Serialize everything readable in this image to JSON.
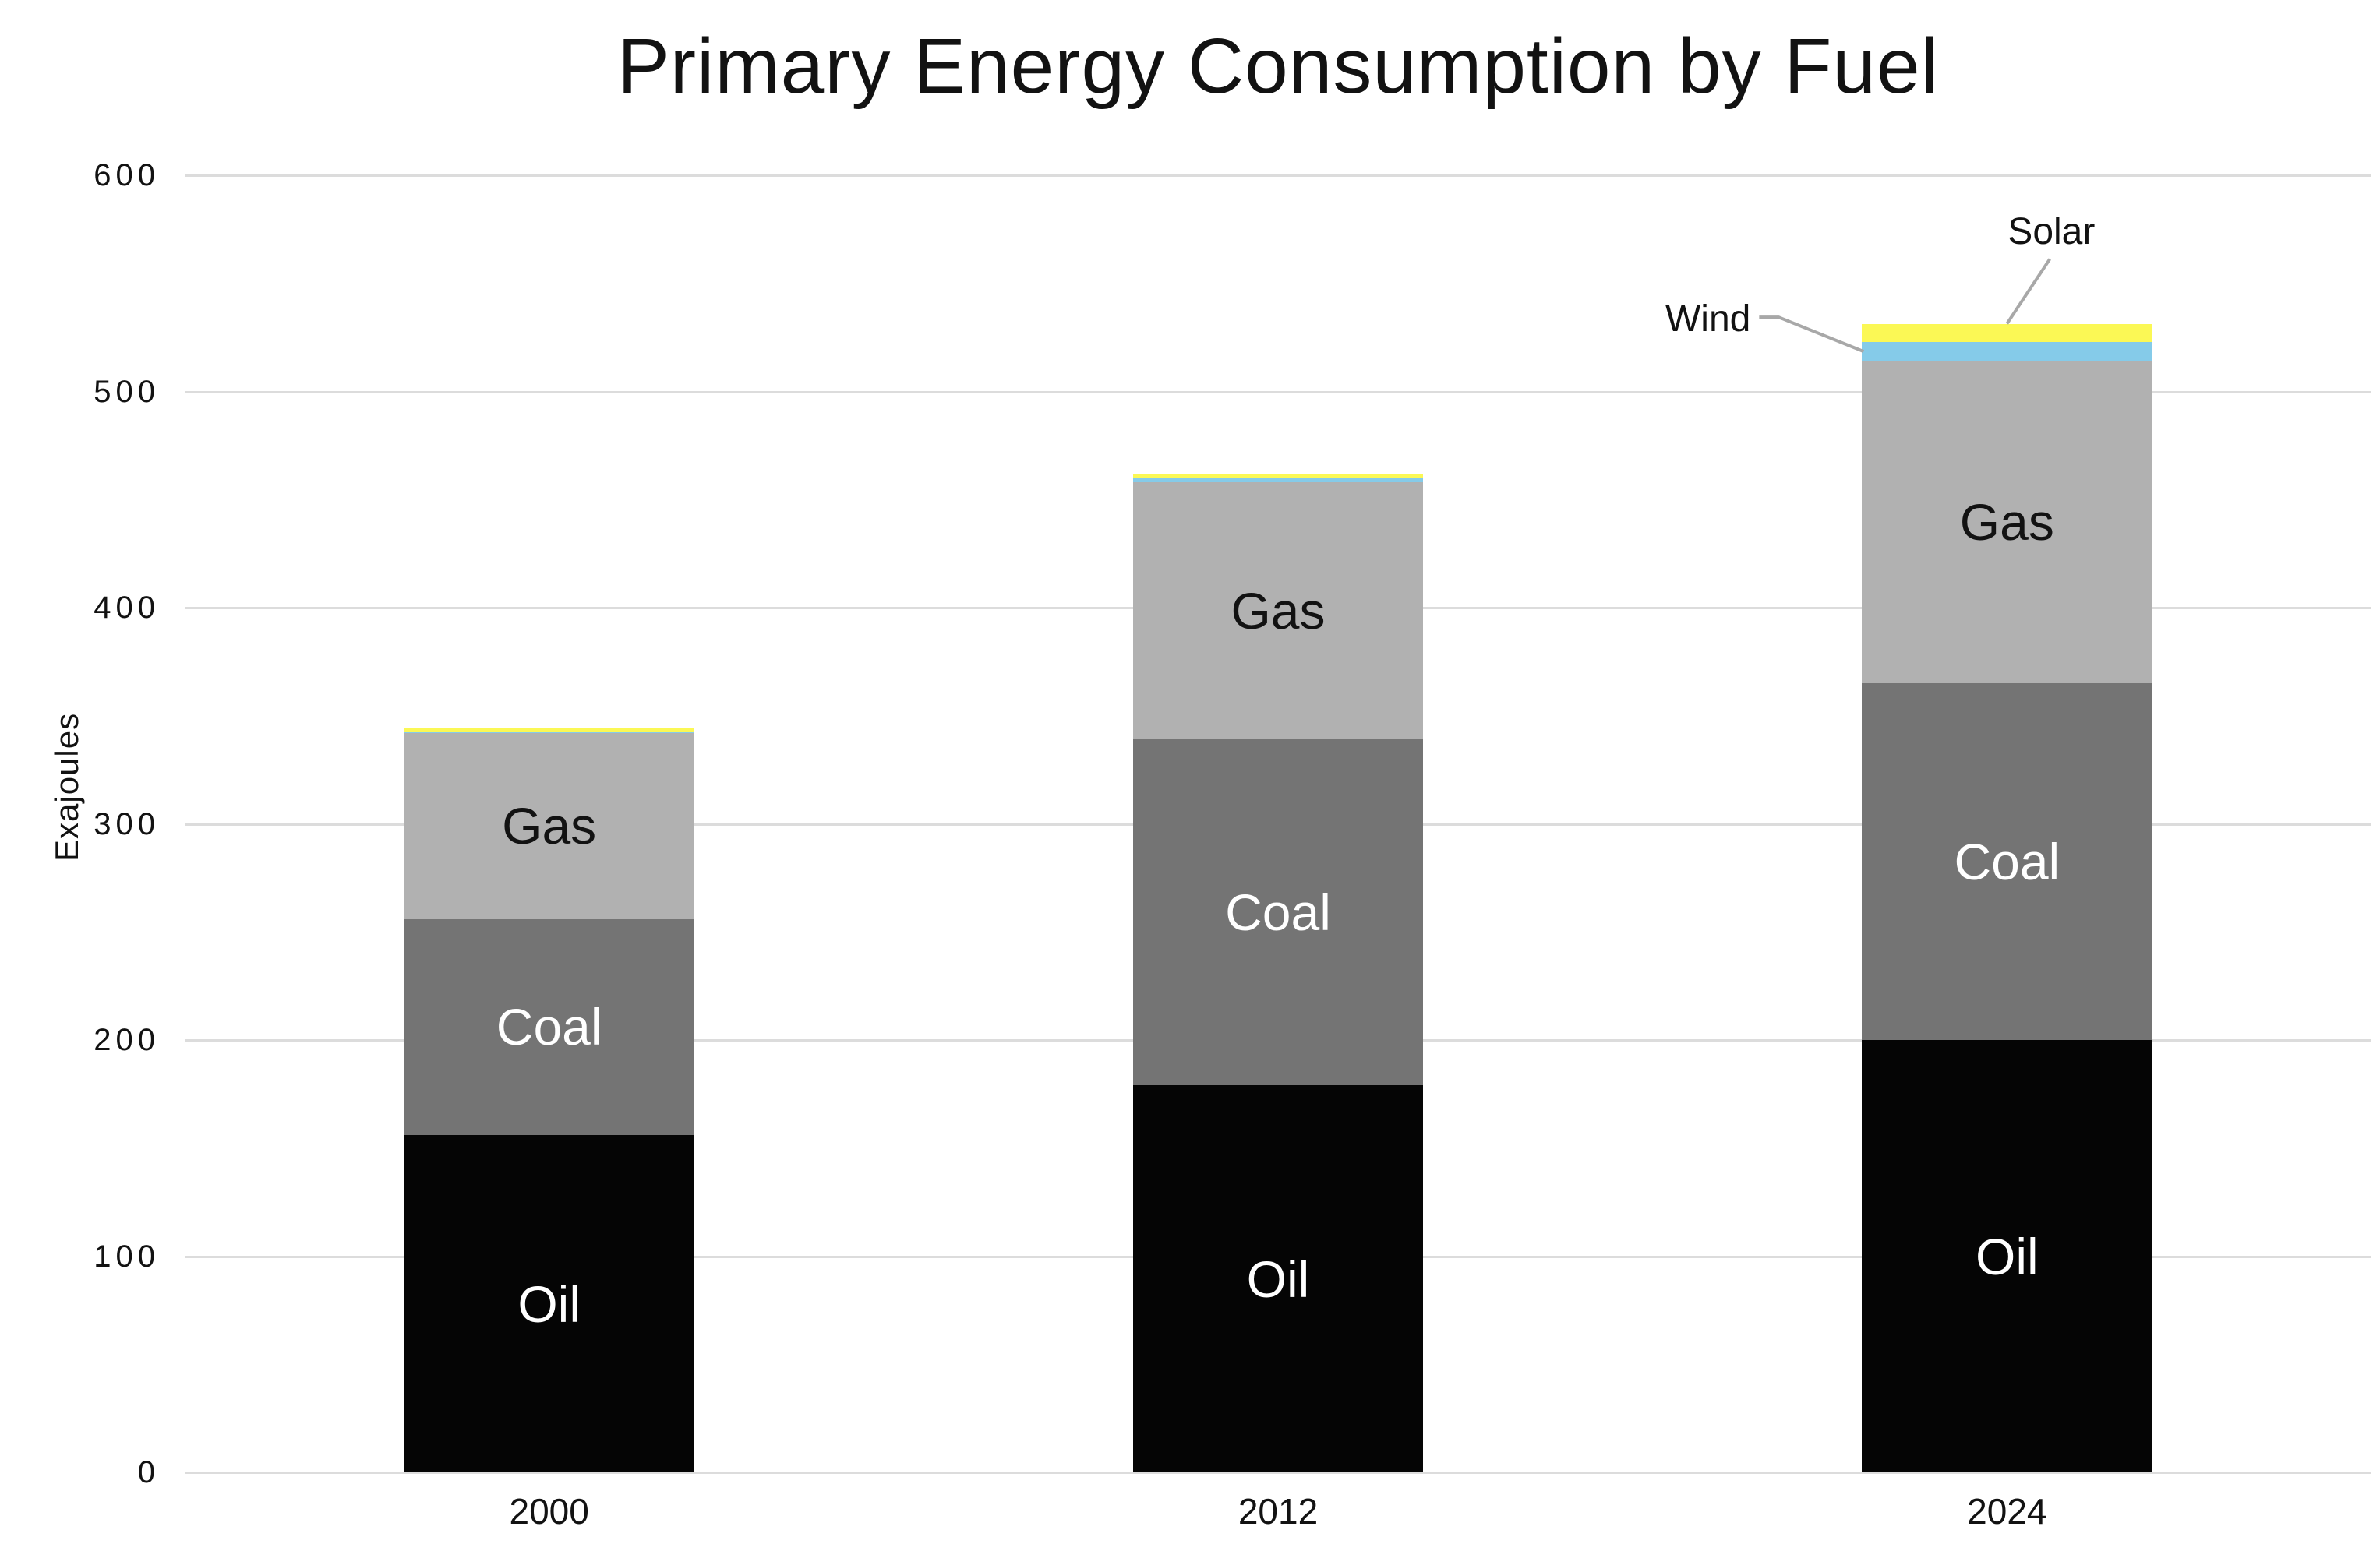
{
  "page_title": "Primary Energy Consumption by Fuel",
  "chart_data": {
    "type": "bar",
    "stacked": true,
    "title": "Primary Energy Consumption by Fuel",
    "ylabel": "Exajoules",
    "xlabel": "",
    "categories": [
      "2000",
      "2012",
      "2024"
    ],
    "series": [
      {
        "name": "Oil",
        "color": "#050505",
        "label_color": "#ffffff",
        "show_label": true,
        "values": [
          156,
          179,
          200
        ]
      },
      {
        "name": "Coal",
        "color": "#747474",
        "label_color": "#ffffff",
        "show_label": true,
        "values": [
          100,
          160,
          165
        ]
      },
      {
        "name": "Gas",
        "color": "#b1b1b1",
        "label_color": "#121212",
        "show_label": true,
        "values": [
          86,
          119,
          149
        ]
      },
      {
        "name": "Wind",
        "color": "#85cbe9",
        "label_color": "#121212",
        "show_label": false,
        "values": [
          0.2,
          2,
          9
        ]
      },
      {
        "name": "Solar",
        "color": "#fbf855",
        "label_color": "#121212",
        "show_label": false,
        "values": [
          1.8,
          1.5,
          8
        ]
      }
    ],
    "totals": [
      344,
      461.5,
      531
    ],
    "ylim": [
      0,
      600
    ],
    "yticks": [
      0,
      100,
      200,
      300,
      400,
      500,
      600
    ],
    "grid": true,
    "legend": "none",
    "annotations": [
      {
        "text": "Wind",
        "series": "Wind",
        "category": "2024"
      },
      {
        "text": "Solar",
        "series": "Solar",
        "category": "2024"
      }
    ],
    "colors": {
      "background": "#ffffff",
      "gridline": "#dcdcdc",
      "text": "#121212",
      "leader_line": "#a8a8a8"
    }
  }
}
